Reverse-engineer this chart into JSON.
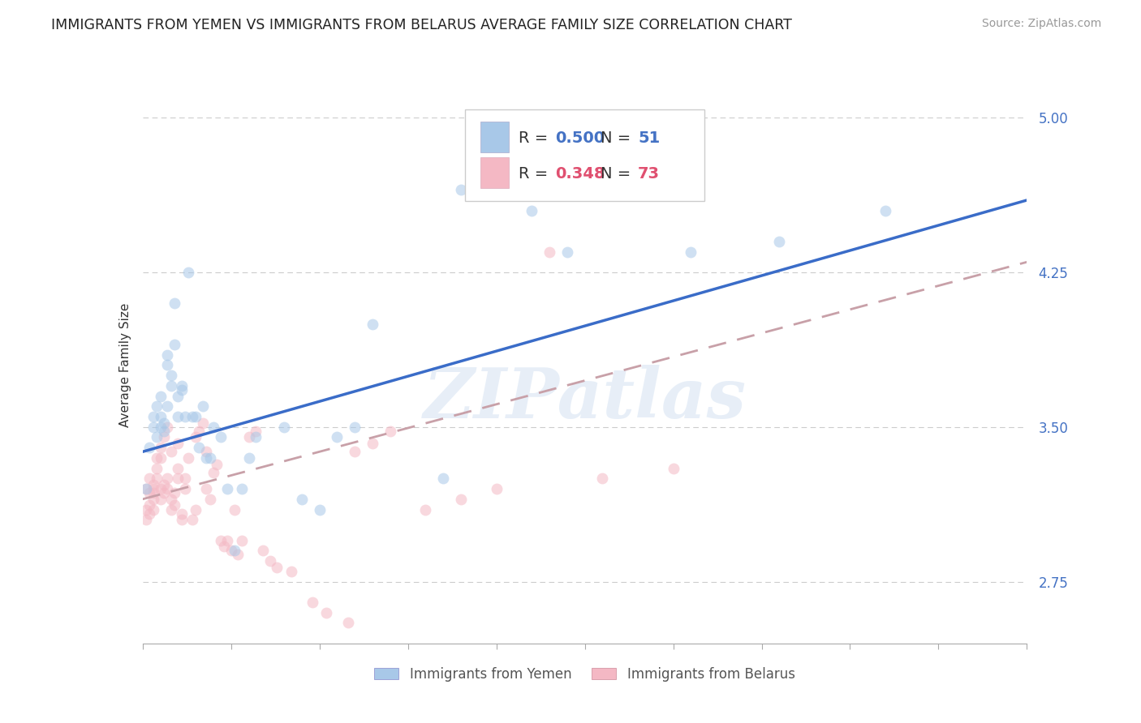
{
  "title": "IMMIGRANTS FROM YEMEN VS IMMIGRANTS FROM BELARUS AVERAGE FAMILY SIZE CORRELATION CHART",
  "source": "Source: ZipAtlas.com",
  "ylabel": "Average Family Size",
  "yticks": [
    2.75,
    3.5,
    4.25,
    5.0
  ],
  "xlim": [
    0.0,
    0.25
  ],
  "ylim": [
    2.45,
    5.15
  ],
  "background_color": "#ffffff",
  "grid_color": "#cccccc",
  "yemen_color": "#a8c8e8",
  "belarus_color": "#f4b8c4",
  "legend_R_yemen": "0.500",
  "legend_N_yemen": "51",
  "legend_R_belarus": "0.348",
  "legend_N_belarus": "73",
  "legend_label_yemen": "Immigrants from Yemen",
  "legend_label_belarus": "Immigrants from Belarus",
  "yemen_scatter_x": [
    0.001,
    0.002,
    0.003,
    0.003,
    0.004,
    0.004,
    0.005,
    0.005,
    0.005,
    0.006,
    0.006,
    0.007,
    0.007,
    0.007,
    0.008,
    0.008,
    0.009,
    0.009,
    0.01,
    0.01,
    0.011,
    0.011,
    0.012,
    0.013,
    0.014,
    0.015,
    0.016,
    0.017,
    0.018,
    0.019,
    0.02,
    0.022,
    0.024,
    0.026,
    0.028,
    0.03,
    0.032,
    0.04,
    0.045,
    0.05,
    0.055,
    0.06,
    0.065,
    0.085,
    0.09,
    0.11,
    0.12,
    0.145,
    0.155,
    0.18,
    0.21
  ],
  "yemen_scatter_y": [
    3.2,
    3.4,
    3.5,
    3.55,
    3.6,
    3.45,
    3.5,
    3.55,
    3.65,
    3.48,
    3.52,
    3.8,
    3.85,
    3.6,
    3.7,
    3.75,
    4.1,
    3.9,
    3.55,
    3.65,
    3.7,
    3.68,
    3.55,
    4.25,
    3.55,
    3.55,
    3.4,
    3.6,
    3.35,
    3.35,
    3.5,
    3.45,
    3.2,
    2.9,
    3.2,
    3.35,
    3.45,
    3.5,
    3.15,
    3.1,
    3.45,
    3.5,
    4.0,
    3.25,
    4.65,
    4.55,
    4.35,
    4.7,
    4.35,
    4.4,
    4.55
  ],
  "belarus_scatter_x": [
    0.001,
    0.001,
    0.001,
    0.002,
    0.002,
    0.002,
    0.002,
    0.003,
    0.003,
    0.003,
    0.003,
    0.003,
    0.004,
    0.004,
    0.004,
    0.005,
    0.005,
    0.005,
    0.005,
    0.006,
    0.006,
    0.006,
    0.007,
    0.007,
    0.007,
    0.008,
    0.008,
    0.008,
    0.009,
    0.009,
    0.01,
    0.01,
    0.01,
    0.011,
    0.011,
    0.012,
    0.012,
    0.013,
    0.014,
    0.015,
    0.015,
    0.016,
    0.017,
    0.018,
    0.018,
    0.019,
    0.02,
    0.021,
    0.022,
    0.023,
    0.024,
    0.025,
    0.026,
    0.027,
    0.028,
    0.03,
    0.032,
    0.034,
    0.036,
    0.038,
    0.042,
    0.048,
    0.052,
    0.058,
    0.06,
    0.065,
    0.07,
    0.08,
    0.09,
    0.1,
    0.115,
    0.13,
    0.15
  ],
  "belarus_scatter_y": [
    3.1,
    3.2,
    3.05,
    3.08,
    3.12,
    3.18,
    3.25,
    3.1,
    3.15,
    3.2,
    3.22,
    3.18,
    3.3,
    3.25,
    3.35,
    3.15,
    3.2,
    3.35,
    3.4,
    3.18,
    3.22,
    3.45,
    3.2,
    3.25,
    3.5,
    3.1,
    3.15,
    3.38,
    3.12,
    3.18,
    3.25,
    3.3,
    3.42,
    3.05,
    3.08,
    3.2,
    3.25,
    3.35,
    3.05,
    3.1,
    3.45,
    3.48,
    3.52,
    3.2,
    3.38,
    3.15,
    3.28,
    3.32,
    2.95,
    2.92,
    2.95,
    2.9,
    3.1,
    2.88,
    2.95,
    3.45,
    3.48,
    2.9,
    2.85,
    2.82,
    2.8,
    2.65,
    2.6,
    2.55,
    3.38,
    3.42,
    3.48,
    3.1,
    3.15,
    3.2,
    4.35,
    3.25,
    3.3
  ],
  "yemen_line_x": [
    0.0,
    0.25
  ],
  "yemen_line_y": [
    3.38,
    4.6
  ],
  "belarus_line_x": [
    0.0,
    0.25
  ],
  "belarus_line_y": [
    3.15,
    4.3
  ],
  "watermark": "ZIPatlas",
  "title_fontsize": 12.5,
  "axis_label_fontsize": 11,
  "tick_fontsize": 11,
  "legend_fontsize": 14,
  "source_fontsize": 10,
  "right_tick_color": "#4472c4",
  "scatter_alpha": 0.55,
  "scatter_size": 100
}
